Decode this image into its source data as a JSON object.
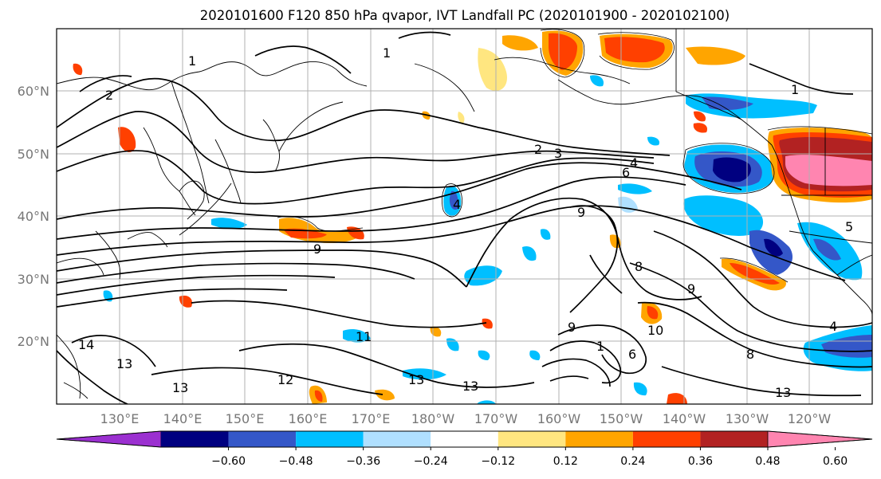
{
  "title": "2020101600 F120 850 hPa qvapor, IVT Landfall PC (2020101900 - 2020102100)",
  "lat_labels": [
    "60°N",
    "50°N",
    "40°N",
    "30°N",
    "20°N"
  ],
  "lon_labels": [
    "130°E",
    "140°E",
    "150°E",
    "160°E",
    "170°E",
    "180°W",
    "170°W",
    "160°W",
    "150°W",
    "140°W",
    "130°W",
    "120°W"
  ],
  "colorbar": {
    "ticks": [
      "−0.60",
      "−0.48",
      "−0.36",
      "−0.24",
      "−0.12",
      "0.12",
      "0.24",
      "0.36",
      "0.48",
      "0.60"
    ],
    "colors": [
      "#9b30d0",
      "#000080",
      "#3457c8",
      "#00bfff",
      "#b0e0ff",
      "#ffffff",
      "#ffe680",
      "#ffa500",
      "#ff4000",
      "#b22222",
      "#ff85b0"
    ]
  },
  "contour_labels": [
    "2",
    "2",
    "3",
    "4",
    "6",
    "4",
    "9",
    "9",
    "8",
    "9",
    "9",
    "1",
    "10",
    "6",
    "8",
    "12",
    "13",
    "13",
    "14",
    "13",
    "13",
    "11",
    "13",
    "1",
    "1",
    "1",
    "4",
    "5"
  ]
}
